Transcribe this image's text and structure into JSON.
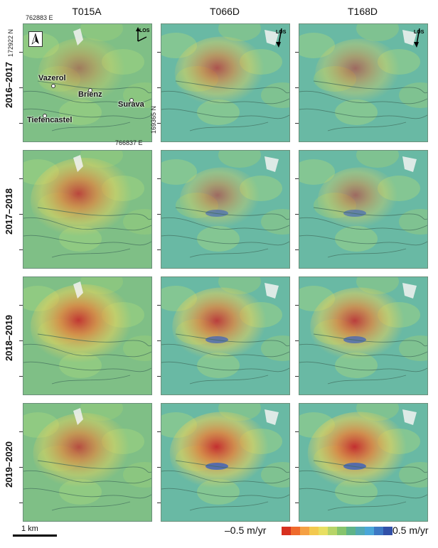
{
  "columns": [
    "T015A",
    "T066D",
    "T168D"
  ],
  "rows": [
    "2016–2017",
    "2017–2018",
    "2018–2019",
    "2019–2020"
  ],
  "coordinates": {
    "top_left_easting": "762883 E",
    "top_left_northing": "172922 N",
    "bottom_right_easting": "766837 E",
    "bottom_right_northing": "169365 N"
  },
  "places": [
    "Vazerol",
    "Brienz",
    "Surava",
    "Tiefencastel"
  ],
  "los_label": "LOS",
  "scale": {
    "label": "1 km"
  },
  "legend": {
    "min_label": "–0.5 m/yr",
    "max_label": "0.5 m/yr",
    "colors": [
      "#d7301f",
      "#ef6a2c",
      "#f5a043",
      "#f3c94f",
      "#e8df62",
      "#b7d468",
      "#86c46c",
      "#5fb388",
      "#53a9b3",
      "#4aa6d8",
      "#3d78c4",
      "#3150a8"
    ]
  },
  "panels": [
    {
      "intensity": 0.45,
      "extent": 0.7
    },
    {
      "intensity": 0.7,
      "extent": 0.75
    },
    {
      "intensity": 0.55,
      "extent": 0.65
    },
    {
      "intensity": 0.8,
      "extent": 1.0
    },
    {
      "intensity": 0.55,
      "extent": 0.55
    },
    {
      "intensity": 0.55,
      "extent": 0.55
    },
    {
      "intensity": 0.9,
      "extent": 1.0
    },
    {
      "intensity": 0.85,
      "extent": 0.85
    },
    {
      "intensity": 0.85,
      "extent": 0.85
    },
    {
      "intensity": 0.75,
      "extent": 0.9
    },
    {
      "intensity": 0.95,
      "extent": 0.95
    },
    {
      "intensity": 0.95,
      "extent": 0.95
    }
  ]
}
